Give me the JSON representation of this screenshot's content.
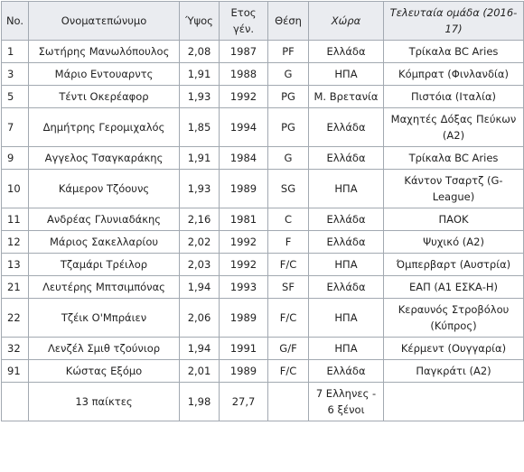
{
  "table": {
    "headers": [
      {
        "text": "No.",
        "italic": false
      },
      {
        "text": "Ονοματεπώνυμο",
        "italic": false
      },
      {
        "text": "Ύψος",
        "italic": false
      },
      {
        "text": "Ετος γέν.",
        "italic": false
      },
      {
        "text": "Θέση",
        "italic": false
      },
      {
        "text": "Χώρα",
        "italic": true
      },
      {
        "text": "Τελευταία ομάδα (2016-17)",
        "italic": true
      }
    ],
    "rows": [
      {
        "no": "1",
        "name": "Σωτήρης Μανωλόπουλος",
        "height": "2,08",
        "year": "1987",
        "position": "PF",
        "country": "Ελλάδα",
        "team": "Τρίκαλα BC Aries",
        "tall": false
      },
      {
        "no": "3",
        "name": "Μάριο Εντουαρντς",
        "height": "1,91",
        "year": "1988",
        "position": "G",
        "country": "ΗΠΑ",
        "team": "Κόμπρατ (Φινλανδία)",
        "tall": false
      },
      {
        "no": "5",
        "name": "Τέντι Οκερέαφορ",
        "height": "1,93",
        "year": "1992",
        "position": "PG",
        "country": "Μ. Βρετανία",
        "team": "Πιστόια (Ιταλία)",
        "tall": false
      },
      {
        "no": "7",
        "name": "Δημήτρης Γερομιχαλός",
        "height": "1,85",
        "year": "1994",
        "position": "PG",
        "country": "Ελλάδα",
        "team": "Μαχητές Δόξας Πεύκων (Α2)",
        "tall": true
      },
      {
        "no": "9",
        "name": "Αγγελος Τσαγκαράκης",
        "height": "1,91",
        "year": "1984",
        "position": "G",
        "country": "Ελλάδα",
        "team": "Τρίκαλα BC Aries",
        "tall": false
      },
      {
        "no": "10",
        "name": "Κάμερον Τζόουνς",
        "height": "1,93",
        "year": "1989",
        "position": "SG",
        "country": "ΗΠΑ",
        "team": "Κάντον Τσαρτζ (G-League)",
        "tall": true
      },
      {
        "no": "11",
        "name": "Ανδρέας Γλυνιαδάκης",
        "height": "2,16",
        "year": "1981",
        "position": "C",
        "country": "Ελλάδα",
        "team": "ΠΑΟΚ",
        "tall": false
      },
      {
        "no": "12",
        "name": "Μάριος Σακελλαρίου",
        "height": "2,02",
        "year": "1992",
        "position": "F",
        "country": "Ελλάδα",
        "team": "Ψυχικό (Α2)",
        "tall": false
      },
      {
        "no": "13",
        "name": "Τζαμάρι Τρέιλορ",
        "height": "2,03",
        "year": "1992",
        "position": "F/C",
        "country": "ΗΠΑ",
        "team": "Όμπερβαρτ (Αυστρία)",
        "tall": false
      },
      {
        "no": "21",
        "name": "Λευτέρης Μπτσιμπόνας",
        "height": "1,94",
        "year": "1993",
        "position": "SF",
        "country": "Ελλάδα",
        "team": "ΕΑΠ (Α1 ΕΣΚΑ-Η)",
        "tall": false
      },
      {
        "no": "22",
        "name": "Τζέικ Ο'Μπράιεν",
        "height": "2,06",
        "year": "1989",
        "position": "F/C",
        "country": "ΗΠΑ",
        "team": "Κεραυνός Στροβόλου (Κύπρος)",
        "tall": true
      },
      {
        "no": "32",
        "name": "Λενζέλ Σμιθ τζούνιορ",
        "height": "1,94",
        "year": "1991",
        "position": "G/F",
        "country": "ΗΠΑ",
        "team": "Κέρμεντ (Ουγγαρία)",
        "tall": false
      },
      {
        "no": "91",
        "name": "Κώστας Εξόμο",
        "height": "2,01",
        "year": "1989",
        "position": "F/C",
        "country": "Ελλάδα",
        "team": "Παγκράτι (Α2)",
        "tall": false
      }
    ],
    "summary": {
      "no": "",
      "name": "13 παίκτες",
      "height": "1,98",
      "year": "27,7",
      "position": "",
      "country": "7 Ελληνες - 6 ξένοι",
      "team": ""
    }
  }
}
